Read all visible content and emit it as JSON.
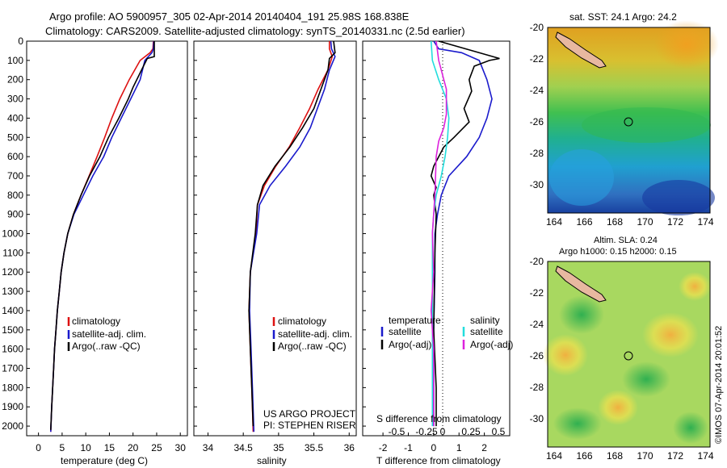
{
  "header": {
    "title_line1": "Argo profile: AO 5900957_305 02-Apr-2014 20140404_191 25.98S 168.838E",
    "title_line2": "Climatology: CARS2009. Satellite-adjusted climatology: synTS_20140331.nc (2.5d earlier)"
  },
  "colors": {
    "climatology": "#dd1111",
    "satellite": "#1a1acc",
    "argo": "#000000",
    "cyan": "#22dddd",
    "magenta": "#dd22dd"
  },
  "chart_data": [
    {
      "type": "line",
      "id": "temperature",
      "xlabel": "temperature (deg C)",
      "xticks": [
        0,
        5,
        10,
        15,
        20,
        25,
        30
      ],
      "xlim": [
        -2.5,
        31.5
      ],
      "ylim": [
        0,
        2050
      ],
      "yticks": [
        0,
        100,
        200,
        300,
        400,
        500,
        600,
        700,
        800,
        900,
        1000,
        1100,
        1200,
        1300,
        1400,
        1500,
        1600,
        1700,
        1800,
        1900,
        2000
      ],
      "legend": [
        "climatology",
        "satellite-adj. clim.",
        "Argo(..raw -QC)"
      ],
      "series": [
        {
          "name": "climatology",
          "color": "#dd1111",
          "points": [
            [
              24.3,
              0
            ],
            [
              24.2,
              40
            ],
            [
              23.6,
              60
            ],
            [
              21.5,
              100
            ],
            [
              19.2,
              200
            ],
            [
              17.2,
              300
            ],
            [
              15.5,
              400
            ],
            [
              14.0,
              500
            ],
            [
              12.4,
              600
            ],
            [
              10.7,
              700
            ],
            [
              9.0,
              800
            ],
            [
              7.4,
              900
            ],
            [
              6.2,
              1000
            ],
            [
              5.4,
              1100
            ],
            [
              4.8,
              1200
            ],
            [
              4.4,
              1300
            ],
            [
              4.0,
              1400
            ],
            [
              3.7,
              1500
            ],
            [
              3.4,
              1600
            ],
            [
              3.2,
              1700
            ],
            [
              3.0,
              1800
            ],
            [
              2.8,
              1900
            ],
            [
              2.6,
              2030
            ]
          ]
        },
        {
          "name": "satellite-adj. clim.",
          "color": "#1a1acc",
          "points": [
            [
              24.4,
              0
            ],
            [
              24.3,
              40
            ],
            [
              24.0,
              60
            ],
            [
              22.5,
              100
            ],
            [
              21.5,
              200
            ],
            [
              19.5,
              300
            ],
            [
              17.5,
              400
            ],
            [
              15.5,
              500
            ],
            [
              13.8,
              600
            ],
            [
              11.5,
              700
            ],
            [
              9.5,
              800
            ],
            [
              7.5,
              900
            ],
            [
              6.2,
              1000
            ],
            [
              5.4,
              1100
            ],
            [
              4.8,
              1200
            ],
            [
              4.4,
              1300
            ],
            [
              4.0,
              1400
            ],
            [
              3.7,
              1500
            ],
            [
              3.4,
              1600
            ],
            [
              3.2,
              1700
            ],
            [
              3.0,
              1800
            ],
            [
              2.8,
              1900
            ],
            [
              2.6,
              2030
            ]
          ]
        },
        {
          "name": "Argo(..raw -QC)",
          "color": "#000000",
          "points": [
            [
              24.5,
              0
            ],
            [
              24.5,
              80
            ],
            [
              23.0,
              90
            ],
            [
              22.0,
              140
            ],
            [
              20.0,
              240
            ],
            [
              19.0,
              300
            ],
            [
              17.0,
              400
            ],
            [
              14.8,
              500
            ],
            [
              13.0,
              600
            ],
            [
              10.8,
              700
            ],
            [
              9.0,
              800
            ],
            [
              7.4,
              900
            ],
            [
              6.2,
              1000
            ],
            [
              5.4,
              1100
            ],
            [
              4.8,
              1200
            ],
            [
              4.4,
              1300
            ],
            [
              4.0,
              1400
            ],
            [
              3.7,
              1500
            ],
            [
              3.4,
              1600
            ],
            [
              3.2,
              1700
            ],
            [
              3.0,
              1800
            ],
            [
              2.8,
              1900
            ],
            [
              2.6,
              2020
            ]
          ]
        }
      ]
    },
    {
      "type": "line",
      "id": "salinity",
      "xlabel": "salinity",
      "xticks": [
        34,
        34.5,
        35,
        35.5,
        36
      ],
      "xlim": [
        33.8,
        36.1
      ],
      "ylim": [
        0,
        2050
      ],
      "legend": [
        "climatology",
        "satellite-adj. clim.",
        "Argo(..raw -QC)"
      ],
      "annotations": [
        "US ARGO PROJECT",
        "PI: STEPHEN RISER"
      ],
      "series": [
        {
          "name": "climatology",
          "color": "#dd1111",
          "points": [
            [
              35.72,
              0
            ],
            [
              35.72,
              40
            ],
            [
              35.76,
              80
            ],
            [
              35.7,
              150
            ],
            [
              35.56,
              250
            ],
            [
              35.44,
              350
            ],
            [
              35.3,
              450
            ],
            [
              35.15,
              550
            ],
            [
              34.96,
              650
            ],
            [
              34.8,
              750
            ],
            [
              34.7,
              850
            ],
            [
              34.68,
              1000
            ],
            [
              34.6,
              1200
            ],
            [
              34.58,
              1400
            ],
            [
              34.6,
              1600
            ],
            [
              34.62,
              1800
            ],
            [
              34.64,
              2030
            ]
          ]
        },
        {
          "name": "satellite-adj. clim.",
          "color": "#1a1acc",
          "points": [
            [
              35.74,
              0
            ],
            [
              35.75,
              40
            ],
            [
              35.8,
              80
            ],
            [
              35.72,
              150
            ],
            [
              35.65,
              250
            ],
            [
              35.55,
              350
            ],
            [
              35.45,
              450
            ],
            [
              35.3,
              550
            ],
            [
              35.1,
              650
            ],
            [
              34.88,
              750
            ],
            [
              34.73,
              850
            ],
            [
              34.69,
              1000
            ],
            [
              34.6,
              1200
            ],
            [
              34.59,
              1400
            ],
            [
              34.61,
              1600
            ],
            [
              34.63,
              1800
            ],
            [
              34.65,
              2030
            ]
          ]
        },
        {
          "name": "Argo(..raw -QC)",
          "color": "#000000",
          "points": [
            [
              35.78,
              0
            ],
            [
              35.8,
              60
            ],
            [
              35.72,
              90
            ],
            [
              35.7,
              150
            ],
            [
              35.6,
              250
            ],
            [
              35.5,
              350
            ],
            [
              35.34,
              450
            ],
            [
              35.16,
              550
            ],
            [
              34.95,
              650
            ],
            [
              34.78,
              750
            ],
            [
              34.7,
              850
            ],
            [
              34.67,
              1000
            ],
            [
              34.6,
              1200
            ],
            [
              34.58,
              1400
            ],
            [
              34.6,
              1600
            ],
            [
              34.62,
              1800
            ],
            [
              34.64,
              2000
            ]
          ]
        }
      ]
    },
    {
      "type": "line",
      "id": "differences",
      "xlabel": "T difference from climatology",
      "xticks": [
        -2,
        -1,
        0,
        1,
        2
      ],
      "top_xlabel": "S difference from climatology",
      "top_xticks": [
        "-0.5",
        "-0.25",
        "0",
        "0.25",
        "0.5"
      ],
      "xlim": [
        -2.8,
        3.0
      ],
      "ylim": [
        0,
        2050
      ],
      "legend_headers": [
        "temperature",
        "salinity"
      ],
      "legend": [
        "satellite",
        "Argo(-adj)",
        "satellite",
        "Argo(-adj)"
      ],
      "series": [
        {
          "name": "satellite",
          "color": "#1a1acc",
          "quantity": "temperature",
          "points": [
            [
              0,
              0
            ],
            [
              0.2,
              40
            ],
            [
              1.1,
              60
            ],
            [
              1.8,
              100
            ],
            [
              2.1,
              200
            ],
            [
              2.3,
              300
            ],
            [
              2.1,
              400
            ],
            [
              1.8,
              500
            ],
            [
              1.3,
              600
            ],
            [
              0.6,
              700
            ],
            [
              0.3,
              800
            ],
            [
              0.15,
              900
            ],
            [
              0.05,
              1000
            ],
            [
              0.05,
              1200
            ],
            [
              0.0,
              1500
            ],
            [
              0.0,
              2000
            ]
          ]
        },
        {
          "name": "Argo(-adj)",
          "color": "#000000",
          "quantity": "temperature",
          "points": [
            [
              0.2,
              0
            ],
            [
              2.6,
              90
            ],
            [
              2.2,
              100
            ],
            [
              1.6,
              130
            ],
            [
              1.4,
              200
            ],
            [
              1.5,
              260
            ],
            [
              1.2,
              350
            ],
            [
              1.4,
              420
            ],
            [
              0.8,
              500
            ],
            [
              0.4,
              550
            ],
            [
              0.0,
              650
            ],
            [
              -0.1,
              700
            ],
            [
              0.1,
              760
            ],
            [
              0.0,
              800
            ],
            [
              0.1,
              900
            ],
            [
              0.05,
              1100
            ],
            [
              0.0,
              1500
            ],
            [
              0.1,
              1800
            ],
            [
              0.1,
              2000
            ]
          ]
        },
        {
          "name": "satellite",
          "color": "#22dddd",
          "quantity": "salinity",
          "points": [
            [
              -0.1,
              0
            ],
            [
              -0.05,
              100
            ],
            [
              0.2,
              200
            ],
            [
              0.5,
              300
            ],
            [
              0.6,
              400
            ],
            [
              0.55,
              500
            ],
            [
              0.45,
              600
            ],
            [
              0.3,
              700
            ],
            [
              0.1,
              800
            ],
            [
              0.0,
              900
            ],
            [
              -0.05,
              1000
            ],
            [
              -0.05,
              1100
            ],
            [
              -0.05,
              1500
            ],
            [
              -0.05,
              2000
            ]
          ]
        },
        {
          "name": "Argo(-adj)",
          "color": "#dd22dd",
          "quantity": "salinity",
          "points": [
            [
              0.1,
              0
            ],
            [
              0.2,
              100
            ],
            [
              0.5,
              250
            ],
            [
              0.5,
              380
            ],
            [
              0.4,
              450
            ],
            [
              0.2,
              520
            ],
            [
              0.1,
              600
            ],
            [
              0.05,
              800
            ],
            [
              -0.05,
              1000
            ],
            [
              0.0,
              1200
            ],
            [
              -0.1,
              1400
            ],
            [
              0.0,
              1600
            ],
            [
              0.0,
              2000
            ]
          ]
        }
      ]
    }
  ],
  "maps": [
    {
      "id": "sst",
      "title": "sat. SST: 24.1 Argo: 24.2",
      "xticks": [
        "164",
        "166",
        "168",
        "170",
        "172",
        "174"
      ],
      "yticks": [
        "-20",
        "-22",
        "-24",
        "-26",
        "-28",
        "-30"
      ]
    },
    {
      "id": "sla",
      "title_line1": "Altim. SLA: 0.24",
      "title_line2": "Argo h1000: 0.15 h2000: 0.15",
      "xticks": [
        "164",
        "166",
        "168",
        "170",
        "172",
        "174"
      ],
      "yticks": [
        "-20",
        "-22",
        "-24",
        "-26",
        "-28",
        "-30"
      ]
    }
  ],
  "footer": {
    "stamp": "©IMOS 07-Apr-2014 20:01:52"
  }
}
